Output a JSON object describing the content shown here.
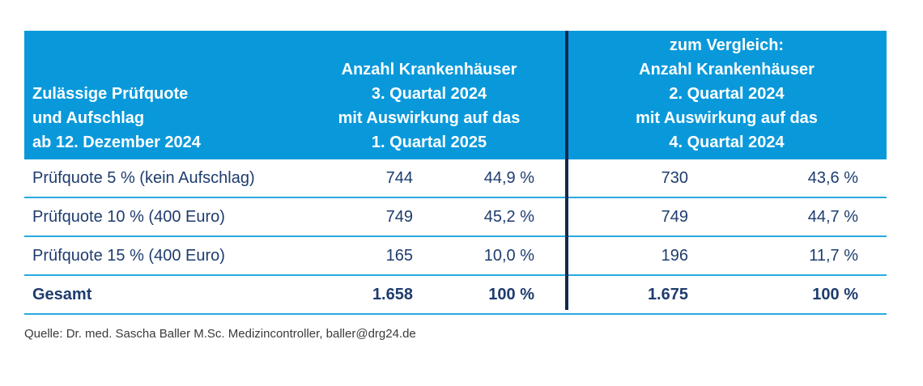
{
  "table": {
    "header": {
      "left": "Zulässige Prüfquote\nund Aufschlag\nab 12. Dezember 2024",
      "middle": "Anzahl Krankenhäuser\n3. Quartal 2024\nmit Auswirkung auf das\n1. Quartal 2025",
      "right": "zum Vergleich:\nAnzahl Krankenhäuser\n2. Quartal 2024\nmit Auswirkung auf das\n4. Quartal 2024"
    },
    "rows": [
      {
        "label": "Prüfquote 5 % (kein Aufschlag)",
        "q3_count": "744",
        "q3_pct": "44,9 %",
        "q2_count": "730",
        "q2_pct": "43,6 %"
      },
      {
        "label": "Prüfquote 10 % (400 Euro)",
        "q3_count": "749",
        "q3_pct": "45,2 %",
        "q2_count": "749",
        "q2_pct": "44,7 %"
      },
      {
        "label": "Prüfquote 15 % (400 Euro)",
        "q3_count": "165",
        "q3_pct": "10,0 %",
        "q2_count": "196",
        "q2_pct": "11,7 %"
      },
      {
        "label": "Gesamt",
        "q3_count": "1.658",
        "q3_pct": "100 %",
        "q2_count": "1.675",
        "q2_pct": "100 %"
      }
    ]
  },
  "source_line": "Quelle: Dr. med. Sascha Baller M.Sc. Medizincontroller, baller@drg24.de",
  "colors": {
    "header_background": "#0999db",
    "header_text": "#ffffff",
    "body_text_navy": "#1e3c6e",
    "vertical_divider_navy": "#14294f",
    "row_separator_cyan": "#29a9e1",
    "source_text": "#3a3a3a"
  },
  "chart_data": {
    "type": "table",
    "title": "Zulässige Prüfquote und Aufschlag ab 12. Dezember 2024",
    "columns": [
      "Zulässige Prüfquote und Aufschlag ab 12. Dezember 2024",
      "Anzahl Krankenhäuser 3. Quartal 2024 mit Auswirkung auf das 1. Quartal 2025 – Anzahl",
      "Anzahl Krankenhäuser 3. Quartal 2024 mit Auswirkung auf das 1. Quartal 2025 – Anteil",
      "zum Vergleich: Anzahl Krankenhäuser 2. Quartal 2024 mit Auswirkung auf das 4. Quartal 2024 – Anzahl",
      "zum Vergleich: Anzahl Krankenhäuser 2. Quartal 2024 mit Auswirkung auf das 4. Quartal 2024 – Anteil"
    ],
    "rows": [
      [
        "Prüfquote 5 % (kein Aufschlag)",
        744,
        "44,9 %",
        730,
        "43,6 %"
      ],
      [
        "Prüfquote 10 % (400 Euro)",
        749,
        "45,2 %",
        749,
        "44,7 %"
      ],
      [
        "Prüfquote 15 % (400 Euro)",
        165,
        "10,0 %",
        196,
        "11,7 %"
      ],
      [
        "Gesamt",
        1658,
        "100 %",
        1675,
        "100 %"
      ]
    ],
    "annotations": [
      "Quelle: Dr. med. Sascha Baller M.Sc. Medizincontroller, baller@drg24.de"
    ]
  }
}
